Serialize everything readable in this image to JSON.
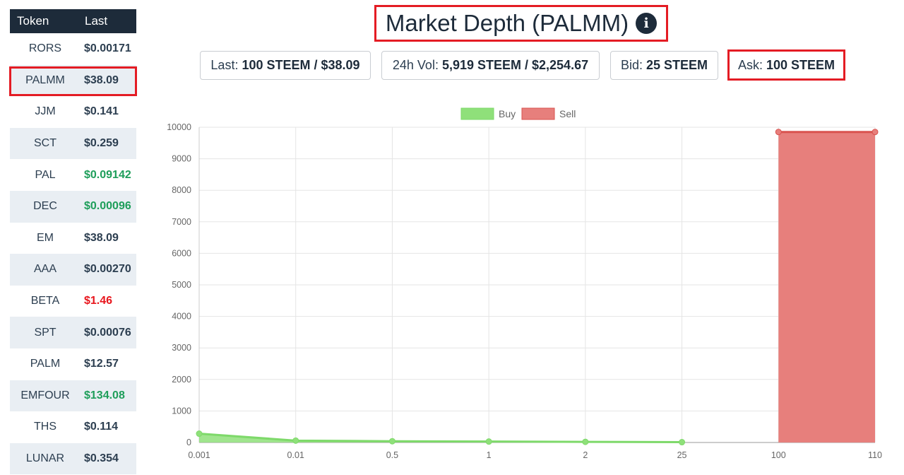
{
  "token_table": {
    "header": {
      "token": "Token",
      "last": "Last"
    },
    "rows": [
      {
        "symbol": "RORS",
        "last": "$0.00171",
        "trend": "flat"
      },
      {
        "symbol": "PALMM",
        "last": "$38.09",
        "trend": "flat",
        "selected": true
      },
      {
        "symbol": "JJM",
        "last": "$0.141",
        "trend": "flat"
      },
      {
        "symbol": "SCT",
        "last": "$0.259",
        "trend": "flat"
      },
      {
        "symbol": "PAL",
        "last": "$0.09142",
        "trend": "up"
      },
      {
        "symbol": "DEC",
        "last": "$0.00096",
        "trend": "up"
      },
      {
        "symbol": "EM",
        "last": "$38.09",
        "trend": "flat"
      },
      {
        "symbol": "AAA",
        "last": "$0.00270",
        "trend": "flat"
      },
      {
        "symbol": "BETA",
        "last": "$1.46",
        "trend": "down"
      },
      {
        "symbol": "SPT",
        "last": "$0.00076",
        "trend": "flat"
      },
      {
        "symbol": "PALM",
        "last": "$12.57",
        "trend": "flat"
      },
      {
        "symbol": "EMFOUR",
        "last": "$134.08",
        "trend": "up"
      },
      {
        "symbol": "THS",
        "last": "$0.114",
        "trend": "flat"
      },
      {
        "symbol": "LUNAR",
        "last": "$0.354",
        "trend": "flat"
      }
    ]
  },
  "header": {
    "title": "Market Depth (PALMM)",
    "info_icon": "info-icon"
  },
  "stats": [
    {
      "label": "Last:",
      "value": "100 STEEM / $38.09"
    },
    {
      "label": "24h Vol:",
      "value": "5,919 STEEM / $2,254.67"
    },
    {
      "label": "Bid:",
      "value": "25 STEEM"
    },
    {
      "label": "Ask:",
      "value": "100 STEEM"
    }
  ],
  "colors": {
    "header_bg": "#1d2b3a",
    "row_shade": "#e9eef3",
    "up": "#1e9e5a",
    "down": "#e8161d",
    "highlight": "#e41c24",
    "buy": "#8fe07a",
    "sell": "#e77f7c"
  },
  "chart_data": {
    "type": "area",
    "x_categories": [
      "0.001",
      "0.01",
      "0.5",
      "1",
      "2",
      "25",
      "100",
      "110"
    ],
    "y_ticks": [
      0,
      1000,
      2000,
      3000,
      4000,
      5000,
      6000,
      7000,
      8000,
      9000,
      10000
    ],
    "ylim": [
      0,
      10000
    ],
    "legend": [
      "Buy",
      "Sell"
    ],
    "legend_position": "top-center",
    "grid": true,
    "series": [
      {
        "name": "Buy",
        "x": [
          "0.001",
          "0.01",
          "0.5",
          "1",
          "2",
          "25"
        ],
        "values": [
          280,
          60,
          40,
          30,
          20,
          10
        ]
      },
      {
        "name": "Sell",
        "x": [
          "100",
          "110"
        ],
        "values": [
          9850,
          9850
        ]
      }
    ]
  }
}
